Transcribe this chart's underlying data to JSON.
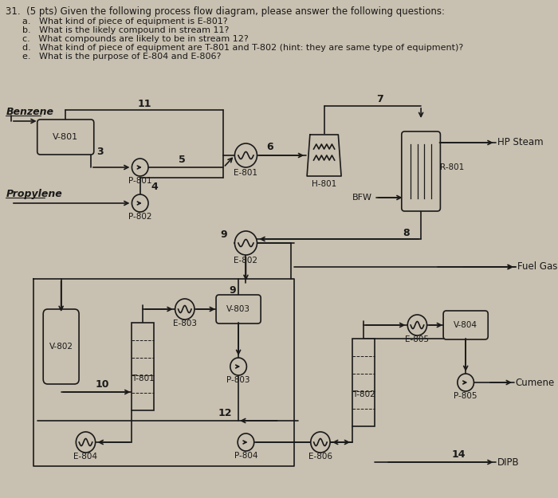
{
  "bg_color": "#c8c0b0",
  "line_color": "#1a1a1a",
  "title": "31.  (5 pts) Given the following process flow diagram, please answer the following questions:",
  "questions": [
    "a.   What kind of piece of equipment is E-801?",
    "b.   What is the likely compound in stream 11?",
    "c.   What compounds are likely to be in stream 12?",
    "d.   What kind of piece of equipment are T-801 and T-802 (hint: they are same type of equipment)?",
    "e.   What is the purpose of E-804 and E-806?"
  ]
}
